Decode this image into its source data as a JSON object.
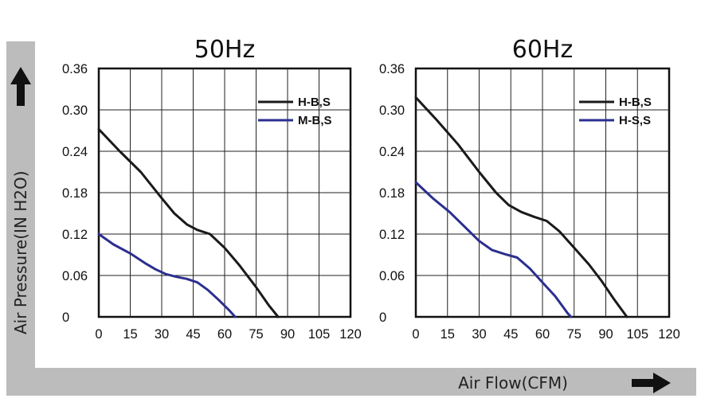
{
  "y_axis_label": "Air Pressure(IN H2O)",
  "x_axis_label": "Air Flow(CFM)",
  "colors": {
    "black_series": "#1a1a1a",
    "blue_series": "#2b2f8f",
    "band": "#bcbcbc"
  },
  "icons": {
    "up": "arrow-up-icon",
    "right": "arrow-right-icon"
  },
  "chart_data": [
    {
      "type": "line",
      "title": "50Hz",
      "xlabel": "Air Flow(CFM)",
      "ylabel": "Air Pressure(IN H2O)",
      "xlim": [
        0,
        120
      ],
      "ylim": [
        0,
        0.36
      ],
      "x_ticks": [
        "0",
        "15",
        "30",
        "45",
        "60",
        "75",
        "90",
        "105",
        "120"
      ],
      "y_ticks": [
        "0",
        "0.06",
        "0.12",
        "0.18",
        "0.24",
        "0.30",
        "0.36"
      ],
      "grid": true,
      "legend_position": "top-right",
      "series": [
        {
          "name": "H-B,S",
          "color": "#1a1a1a",
          "x": [
            0,
            10,
            20,
            30,
            36,
            42,
            47,
            53,
            60,
            67,
            75,
            81,
            85.5
          ],
          "y": [
            0.272,
            0.24,
            0.21,
            0.172,
            0.15,
            0.134,
            0.126,
            0.12,
            0.1,
            0.075,
            0.043,
            0.017,
            0
          ]
        },
        {
          "name": "M-B,S",
          "color": "#2b2f8f",
          "x": [
            0,
            7,
            15,
            22,
            27,
            32,
            37,
            42,
            47,
            52,
            57,
            62,
            65
          ],
          "y": [
            0.12,
            0.105,
            0.092,
            0.078,
            0.069,
            0.062,
            0.058,
            0.055,
            0.05,
            0.039,
            0.025,
            0.01,
            0
          ]
        }
      ]
    },
    {
      "type": "line",
      "title": "60Hz",
      "xlabel": "Air Flow(CFM)",
      "ylabel": "Air Pressure(IN H2O)",
      "xlim": [
        0,
        120
      ],
      "ylim": [
        0,
        0.36
      ],
      "x_ticks": [
        "0",
        "15",
        "30",
        "45",
        "60",
        "75",
        "90",
        "105",
        "120"
      ],
      "y_ticks": [
        "0",
        "0.06",
        "0.12",
        "0.18",
        "0.24",
        "0.30",
        "0.36"
      ],
      "grid": true,
      "legend_position": "top-right",
      "series": [
        {
          "name": "H-B,S",
          "color": "#1a1a1a",
          "x": [
            0,
            10,
            20,
            30,
            38,
            44,
            50,
            56,
            62,
            68,
            75,
            82,
            88,
            94,
            100
          ],
          "y": [
            0.318,
            0.285,
            0.25,
            0.21,
            0.18,
            0.162,
            0.152,
            0.145,
            0.139,
            0.124,
            0.1,
            0.076,
            0.052,
            0.025,
            0
          ]
        },
        {
          "name": "H-S,S",
          "color": "#2b2f8f",
          "x": [
            0,
            8,
            16,
            24,
            30,
            36,
            42,
            48,
            54,
            60,
            66,
            72,
            73.5
          ],
          "y": [
            0.195,
            0.172,
            0.152,
            0.128,
            0.11,
            0.097,
            0.091,
            0.086,
            0.07,
            0.05,
            0.03,
            0.005,
            0
          ]
        }
      ]
    }
  ]
}
